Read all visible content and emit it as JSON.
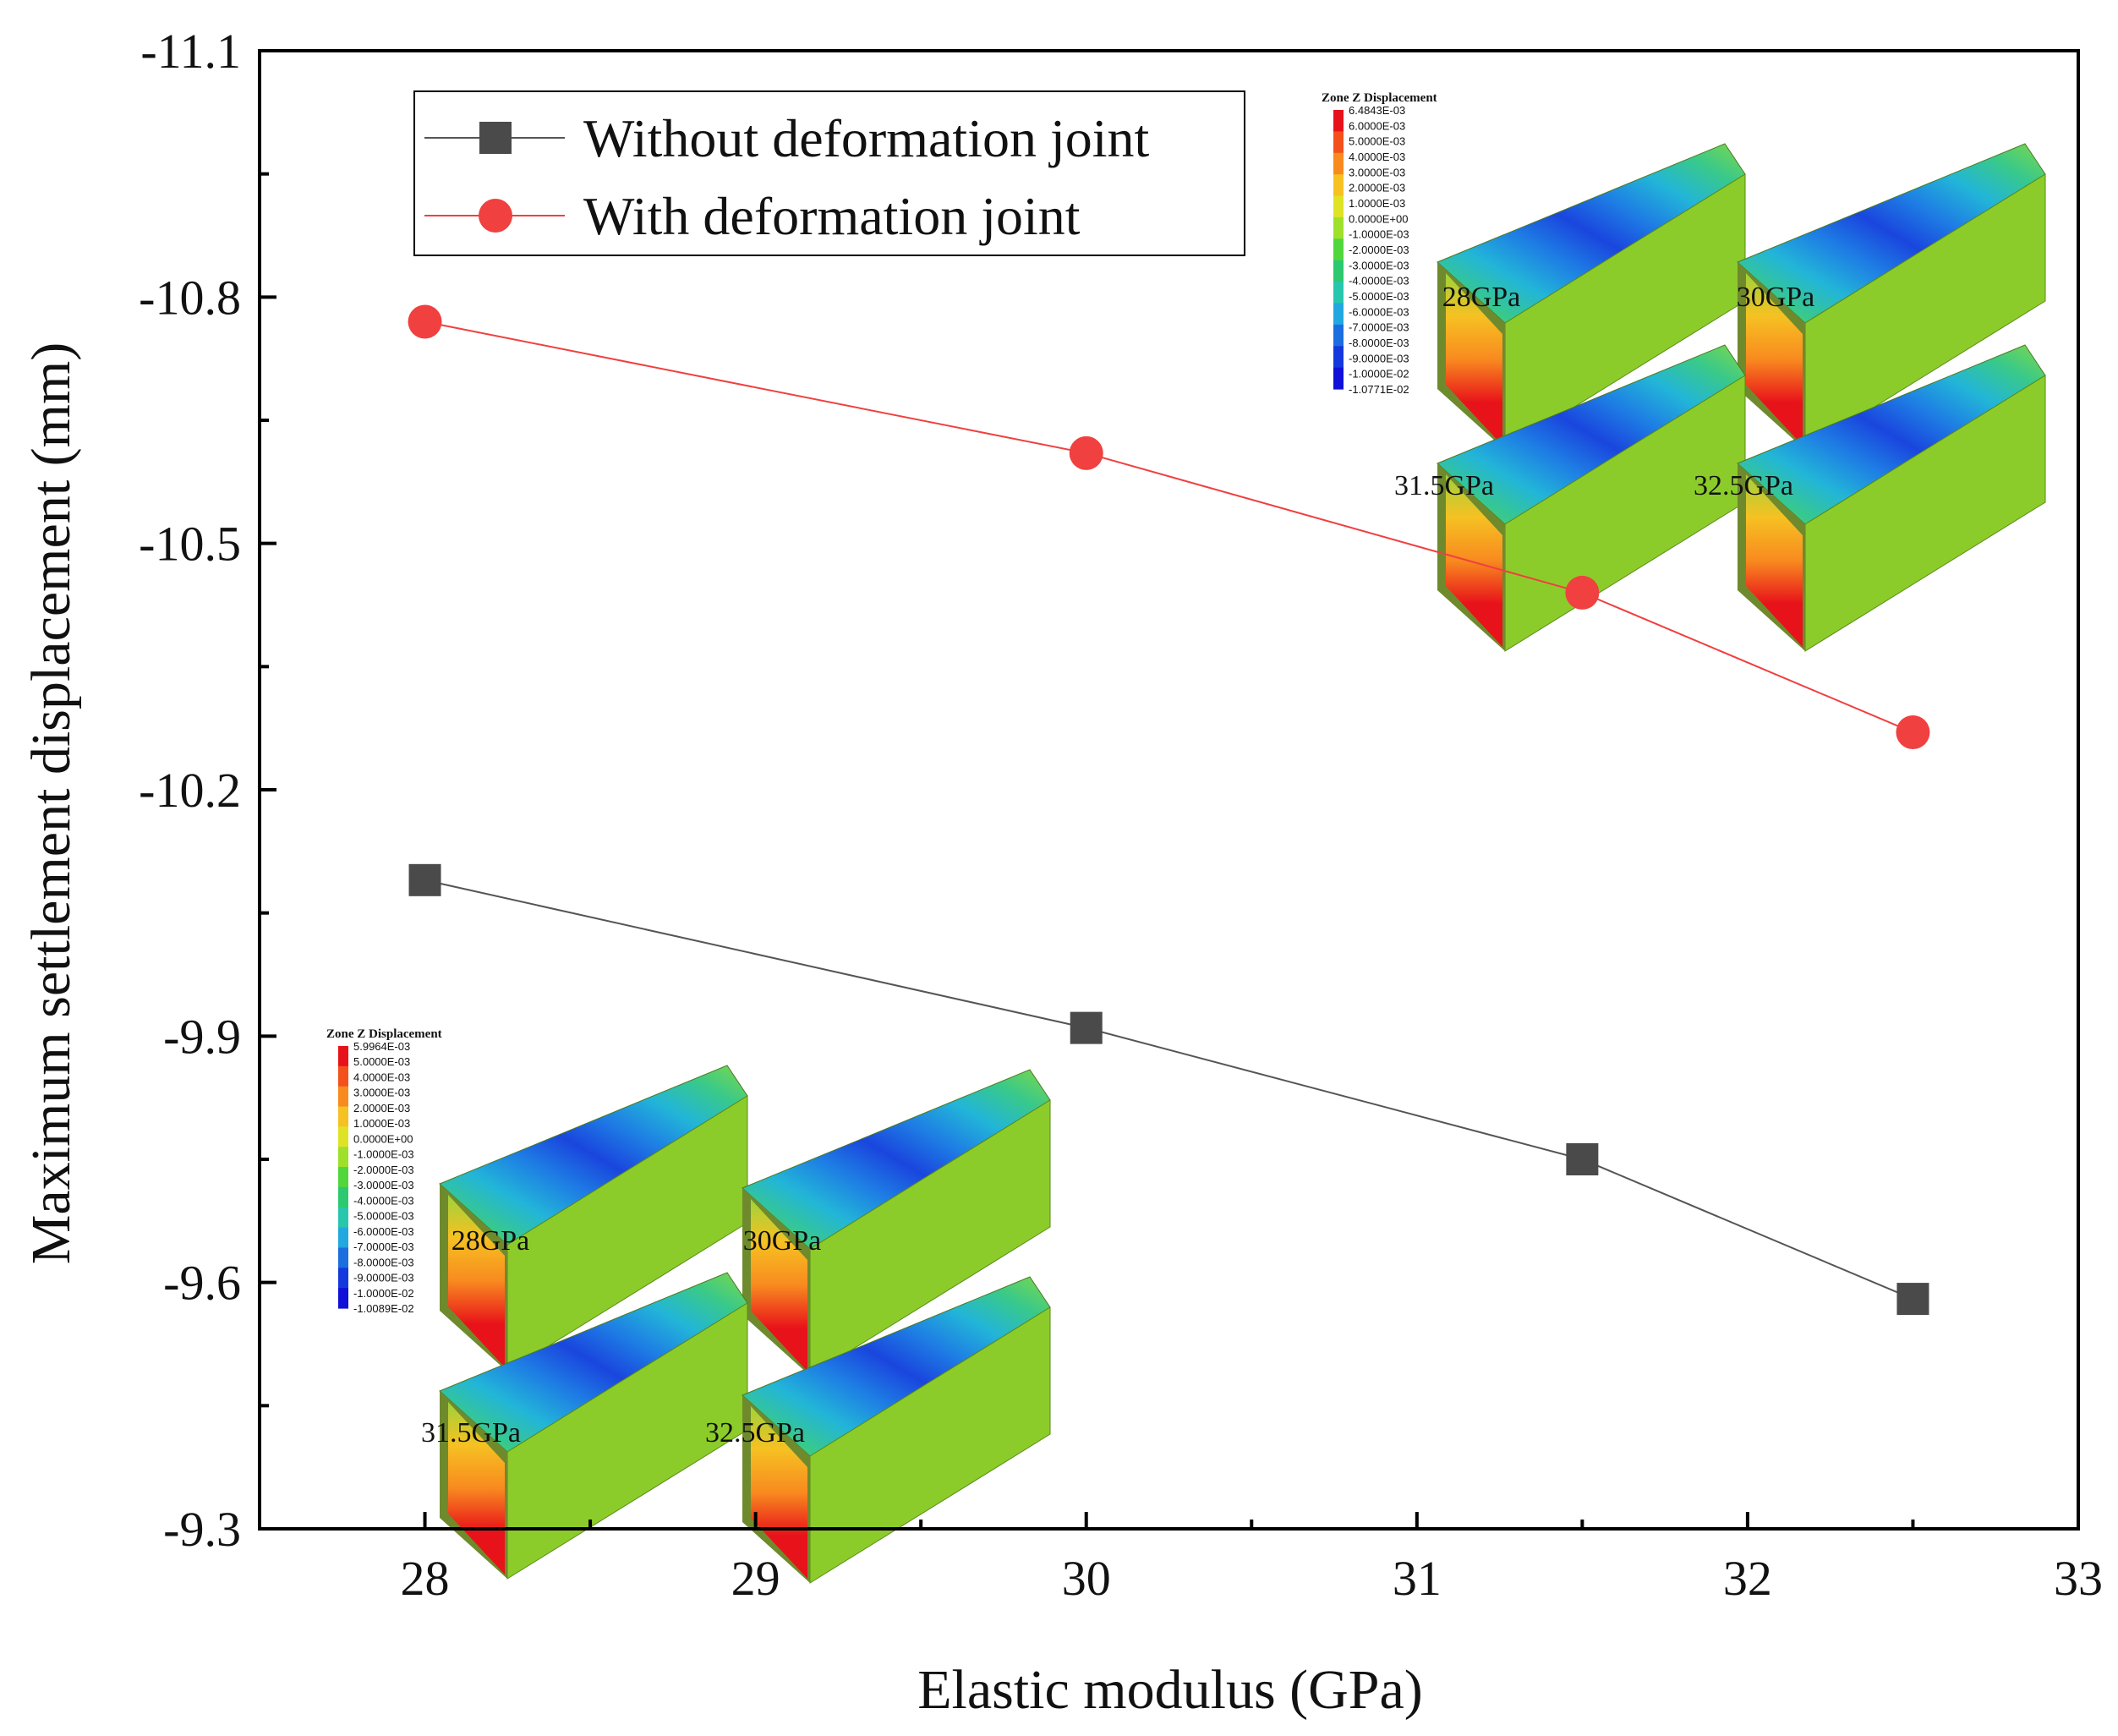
{
  "chart_data": {
    "type": "line",
    "title": "",
    "xlabel": "Elastic modulus (GPa)",
    "ylabel": "Maximum settlement displacement (mm)",
    "xlim": [
      27.5,
      33
    ],
    "ylim": [
      -9.3,
      -11.1
    ],
    "y_inverted": true,
    "x_ticks": [
      28,
      29,
      30,
      31,
      32,
      33
    ],
    "y_ticks": [
      -11.1,
      -10.8,
      -10.5,
      -10.2,
      -9.9,
      -9.6,
      -9.3
    ],
    "x_tick_labels": [
      "28",
      "29",
      "30",
      "31",
      "32",
      "33"
    ],
    "y_tick_labels": [
      "-11.1",
      "-10.8",
      "-10.5",
      "-10.2",
      "-9.9",
      "-9.6",
      "-9.3"
    ],
    "x": [
      28,
      30,
      31.5,
      32.5
    ],
    "series": [
      {
        "name": "Without deformation joint",
        "marker": "square",
        "color": "#4a4a4a",
        "line_color": "#555555",
        "values": [
          -10.09,
          -9.91,
          -9.75,
          -9.58
        ]
      },
      {
        "name": "With deformation joint",
        "marker": "circle",
        "color": "#f04040",
        "line_color": "#f04040",
        "values": [
          -10.77,
          -10.61,
          -10.44,
          -10.27
        ]
      }
    ],
    "legend_position": "top-left",
    "insets": [
      {
        "position": "top-right",
        "colorbar_title": "Zone Z Displacement",
        "colorbar_labels": [
          "6.4843E-03",
          "6.0000E-03",
          "5.0000E-03",
          "4.0000E-03",
          "3.0000E-03",
          "2.0000E-03",
          "1.0000E-03",
          "0.0000E+00",
          "-1.0000E-03",
          "-2.0000E-03",
          "-3.0000E-03",
          "-4.0000E-03",
          "-5.0000E-03",
          "-6.0000E-03",
          "-7.0000E-03",
          "-8.0000E-03",
          "-9.0000E-03",
          "-1.0000E-02",
          "-1.0771E-02"
        ],
        "panel_labels": [
          "28GPa",
          "30GPa",
          "31.5GPa",
          "32.5GPa"
        ]
      },
      {
        "position": "bottom-left",
        "colorbar_title": "Zone Z Displacement",
        "colorbar_labels": [
          "5.9964E-03",
          "5.0000E-03",
          "4.0000E-03",
          "3.0000E-03",
          "2.0000E-03",
          "1.0000E-03",
          "0.0000E+00",
          "-1.0000E-03",
          "-2.0000E-03",
          "-3.0000E-03",
          "-4.0000E-03",
          "-5.0000E-03",
          "-6.0000E-03",
          "-7.0000E-03",
          "-8.0000E-03",
          "-9.0000E-03",
          "-1.0000E-02",
          "-1.0089E-02"
        ],
        "panel_labels": [
          "28GPa",
          "30GPa",
          "31.5GPa",
          "32.5GPa"
        ]
      }
    ],
    "colormap": [
      "#e8121a",
      "#f4501c",
      "#f88a1f",
      "#f6c122",
      "#dfe325",
      "#9fe02b",
      "#51d63c",
      "#2cc970",
      "#27c7ae",
      "#22a8e0",
      "#1b6ee0",
      "#1438dd",
      "#1010d8"
    ]
  }
}
